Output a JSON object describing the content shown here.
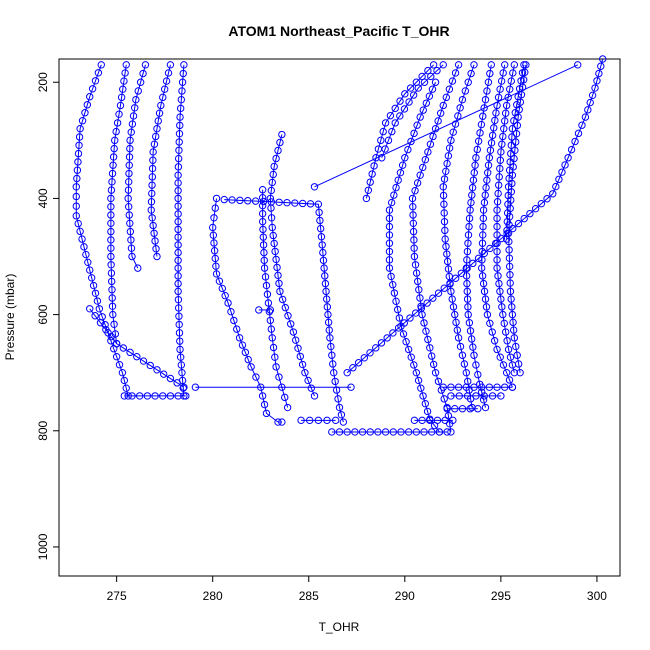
{
  "chart_data": {
    "type": "line",
    "title": "ATOM1 Northeast_Pacific T_OHR",
    "xlabel": "T_OHR",
    "ylabel": "Pressure (mbar)",
    "xlim": [
      272,
      301.2
    ],
    "ylim": [
      1050,
      160
    ],
    "y_reversed": true,
    "x_ticks": [
      275,
      280,
      285,
      290,
      295,
      300
    ],
    "x_tick_labels": [
      "275",
      "280",
      "285",
      "290",
      "295",
      "300"
    ],
    "y_ticks": [
      200,
      400,
      600,
      800,
      1000
    ],
    "y_tick_labels": [
      "200",
      "400",
      "600",
      "800",
      "1000"
    ],
    "grid": false,
    "series_color": "#0000ff",
    "marker": "open-circle",
    "series": [
      {
        "values": [
          [
            274.2,
            170
          ],
          [
            273.6,
            225
          ],
          [
            273.1,
            280
          ],
          [
            272.9,
            380
          ],
          [
            272.9,
            430
          ],
          [
            274.1,
            590
          ],
          [
            274.7,
            645
          ],
          [
            275.3,
            700
          ],
          [
            275.6,
            740
          ]
        ]
      },
      {
        "values": [
          [
            275.5,
            170
          ],
          [
            275.2,
            240
          ],
          [
            274.9,
            300
          ],
          [
            274.7,
            400
          ],
          [
            274.7,
            500
          ],
          [
            274.8,
            600
          ],
          [
            275.0,
            650
          ]
        ]
      },
      {
        "values": [
          [
            276.5,
            170
          ],
          [
            276.0,
            230
          ],
          [
            275.7,
            300
          ],
          [
            275.6,
            400
          ],
          [
            275.8,
            500
          ],
          [
            276.1,
            520
          ]
        ]
      },
      {
        "values": [
          [
            277.8,
            170
          ],
          [
            277.3,
            240
          ],
          [
            276.9,
            320
          ],
          [
            276.8,
            420
          ],
          [
            277.1,
            500
          ]
        ]
      },
      {
        "values": [
          [
            278.5,
            170
          ],
          [
            278.3,
            260
          ],
          [
            278.2,
            360
          ],
          [
            278.2,
            480
          ],
          [
            278.2,
            560
          ],
          [
            278.3,
            660
          ],
          [
            278.5,
            740
          ]
        ]
      },
      {
        "values": [
          [
            280.2,
            400
          ],
          [
            280.0,
            450
          ],
          [
            280.2,
            530
          ],
          [
            280.8,
            580
          ],
          [
            281.4,
            640
          ],
          [
            282.0,
            690
          ],
          [
            282.5,
            725
          ],
          [
            282.8,
            770
          ],
          [
            283.4,
            785
          ],
          [
            283.6,
            785
          ]
        ]
      },
      {
        "values": [
          [
            282.6,
            385
          ],
          [
            282.6,
            440
          ],
          [
            282.7,
            520
          ],
          [
            282.9,
            580
          ],
          [
            283.1,
            640
          ],
          [
            283.3,
            690
          ],
          [
            283.6,
            725
          ],
          [
            283.9,
            760
          ]
        ]
      },
      {
        "values": [
          [
            283.6,
            290
          ],
          [
            283.2,
            345
          ],
          [
            283.0,
            400
          ],
          [
            283.1,
            450
          ],
          [
            283.5,
            560
          ],
          [
            284.2,
            630
          ],
          [
            284.8,
            700
          ],
          [
            285.3,
            740
          ]
        ]
      },
      {
        "values": [
          [
            280.6,
            402
          ],
          [
            285.5,
            410
          ],
          [
            285.7,
            480
          ],
          [
            285.9,
            560
          ],
          [
            286.1,
            640
          ],
          [
            286.3,
            700
          ],
          [
            286.6,
            760
          ],
          [
            286.8,
            785
          ]
        ]
      },
      {
        "values": [
          [
            285.3,
            380
          ],
          [
            299.0,
            170
          ]
        ]
      },
      {
        "values": [
          [
            287.0,
            700
          ],
          [
            297.7,
            392
          ],
          [
            298.5,
            330
          ],
          [
            299.4,
            260
          ],
          [
            299.9,
            210
          ],
          [
            300.3,
            160
          ]
        ]
      },
      {
        "values": [
          [
            288.0,
            400
          ],
          [
            288.5,
            330
          ],
          [
            289.0,
            270
          ],
          [
            290.0,
            220
          ],
          [
            291.5,
            170
          ]
        ]
      },
      {
        "values": [
          [
            288.8,
            330
          ],
          [
            289.5,
            270
          ],
          [
            290.7,
            210
          ],
          [
            292.0,
            170
          ]
        ]
      },
      {
        "values": [
          [
            291.6,
            200
          ],
          [
            290.8,
            260
          ],
          [
            290.0,
            330
          ],
          [
            289.2,
            420
          ],
          [
            289.2,
            520
          ],
          [
            289.8,
            620
          ],
          [
            290.6,
            700
          ],
          [
            291.3,
            780
          ],
          [
            291.8,
            802
          ]
        ]
      },
      {
        "values": [
          [
            292.8,
            170
          ],
          [
            292.0,
            240
          ],
          [
            291.2,
            320
          ],
          [
            290.4,
            400
          ],
          [
            290.5,
            500
          ],
          [
            290.9,
            600
          ],
          [
            291.6,
            700
          ],
          [
            292.2,
            760
          ],
          [
            292.4,
            802
          ]
        ]
      },
      {
        "values": [
          [
            293.6,
            170
          ],
          [
            293.0,
            230
          ],
          [
            292.4,
            300
          ],
          [
            292.0,
            380
          ],
          [
            292.1,
            470
          ],
          [
            292.4,
            560
          ],
          [
            292.8,
            640
          ],
          [
            293.2,
            700
          ],
          [
            293.5,
            760
          ]
        ]
      },
      {
        "values": [
          [
            294.5,
            170
          ],
          [
            294.2,
            230
          ],
          [
            293.7,
            330
          ],
          [
            293.4,
            420
          ],
          [
            293.2,
            520
          ],
          [
            293.3,
            600
          ],
          [
            293.6,
            670
          ],
          [
            293.9,
            720
          ],
          [
            294.2,
            760
          ]
        ]
      },
      {
        "values": [
          [
            295.2,
            170
          ],
          [
            294.8,
            240
          ],
          [
            294.4,
            330
          ],
          [
            294.1,
            420
          ],
          [
            294.0,
            520
          ],
          [
            294.3,
            600
          ],
          [
            294.8,
            660
          ],
          [
            295.3,
            700
          ],
          [
            295.6,
            725
          ]
        ]
      },
      {
        "values": [
          [
            295.7,
            170
          ],
          [
            295.3,
            240
          ],
          [
            295.0,
            320
          ],
          [
            294.8,
            420
          ],
          [
            294.8,
            520
          ],
          [
            295.1,
            600
          ],
          [
            295.4,
            660
          ],
          [
            295.7,
            700
          ]
        ]
      },
      {
        "values": [
          [
            296.3,
            170
          ],
          [
            295.9,
            260
          ],
          [
            295.6,
            360
          ],
          [
            295.4,
            460
          ],
          [
            295.5,
            560
          ],
          [
            295.7,
            640
          ],
          [
            296.0,
            700
          ]
        ]
      },
      {
        "values": [
          [
            296.2,
            170
          ],
          [
            295.6,
            280
          ],
          [
            295.4,
            380
          ],
          [
            295.3,
            470
          ]
        ]
      },
      {
        "values": [
          [
            278.5,
            725
          ],
          [
            275.0,
            650
          ],
          [
            273.6,
            590
          ]
        ]
      },
      {
        "values": [
          [
            275.4,
            740
          ],
          [
            278.6,
            740
          ]
        ]
      },
      {
        "values": [
          [
            279.1,
            725
          ],
          [
            287.2,
            725
          ]
        ]
      },
      {
        "values": [
          [
            292.0,
            725
          ],
          [
            295.6,
            725
          ]
        ]
      },
      {
        "values": [
          [
            292.4,
            740
          ],
          [
            295.0,
            740
          ]
        ]
      },
      {
        "values": [
          [
            292.2,
            762
          ],
          [
            293.8,
            762
          ]
        ]
      },
      {
        "values": [
          [
            290.5,
            782
          ],
          [
            292.5,
            782
          ]
        ]
      },
      {
        "values": [
          [
            286.2,
            802
          ],
          [
            292.2,
            802
          ]
        ]
      },
      {
        "values": [
          [
            284.6,
            782
          ],
          [
            286.4,
            782
          ]
        ]
      },
      {
        "values": [
          [
            282.4,
            592
          ],
          [
            283.0,
            592
          ]
        ]
      }
    ]
  }
}
